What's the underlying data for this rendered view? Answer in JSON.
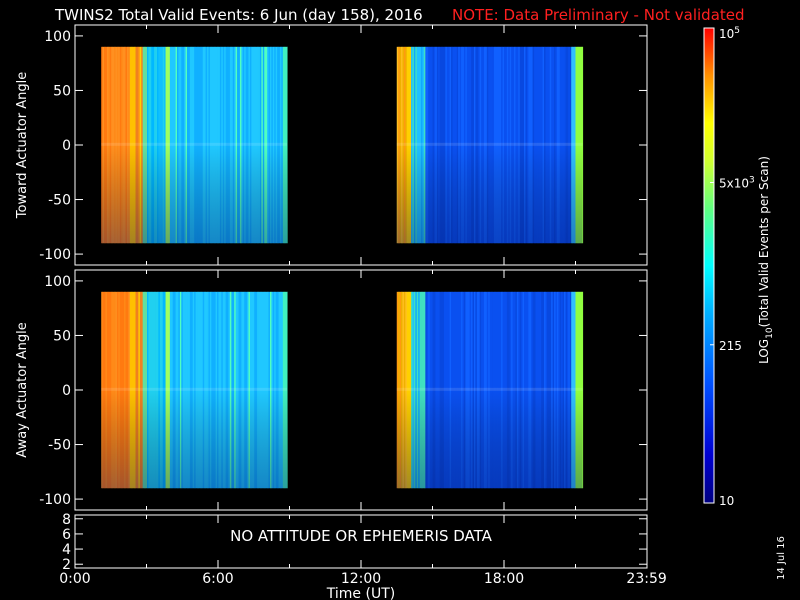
{
  "header": {
    "title": "TWINS2  Total Valid Events:  6 Jun (day 158), 2016",
    "note": "NOTE: Data Preliminary - Not validated"
  },
  "chart_data": [
    {
      "type": "heatmap",
      "panel": "top",
      "ylabel": "Toward Actuator Angle",
      "ylim": [
        -110,
        110
      ],
      "yticks": [
        -100,
        -50,
        0,
        50,
        100
      ],
      "xlim": [
        0,
        24
      ],
      "data_coverage_hours": [
        [
          1.1,
          8.9
        ],
        [
          13.5,
          21.3
        ]
      ],
      "angle_range": [
        -90,
        90
      ]
    },
    {
      "type": "heatmap",
      "panel": "middle",
      "ylabel": "Away Actuator Angle",
      "ylim": [
        -110,
        110
      ],
      "yticks": [
        -100,
        -50,
        0,
        50,
        100
      ],
      "xlim": [
        0,
        24
      ],
      "data_coverage_hours": [
        [
          1.1,
          8.9
        ],
        [
          13.5,
          21.3
        ]
      ],
      "angle_range": [
        -90,
        90
      ]
    },
    {
      "type": "line",
      "panel": "bottom",
      "ylim": [
        1.5,
        8.5
      ],
      "yticks": [
        2,
        4,
        6,
        8
      ],
      "xlim": [
        0,
        24
      ],
      "message": "NO ATTITUDE OR EPHEMERIS DATA",
      "xlabel": "Time (UT)",
      "xticks": [
        0,
        6,
        12,
        18,
        23.983
      ],
      "xtick_labels": [
        "0:00",
        "6:00",
        "12:00",
        "18:00",
        "23:59"
      ]
    },
    {
      "type": "colorbar",
      "label": "LOG10(Total Valid Events per Scan)",
      "scale": "log",
      "range": [
        10,
        100000
      ],
      "ticks": [
        10,
        215,
        5000,
        100000
      ],
      "tick_labels": [
        "10",
        "215",
        "5x10^3",
        "10^5"
      ]
    }
  ],
  "footer": {
    "date_stamp": "14 Jul 16"
  }
}
